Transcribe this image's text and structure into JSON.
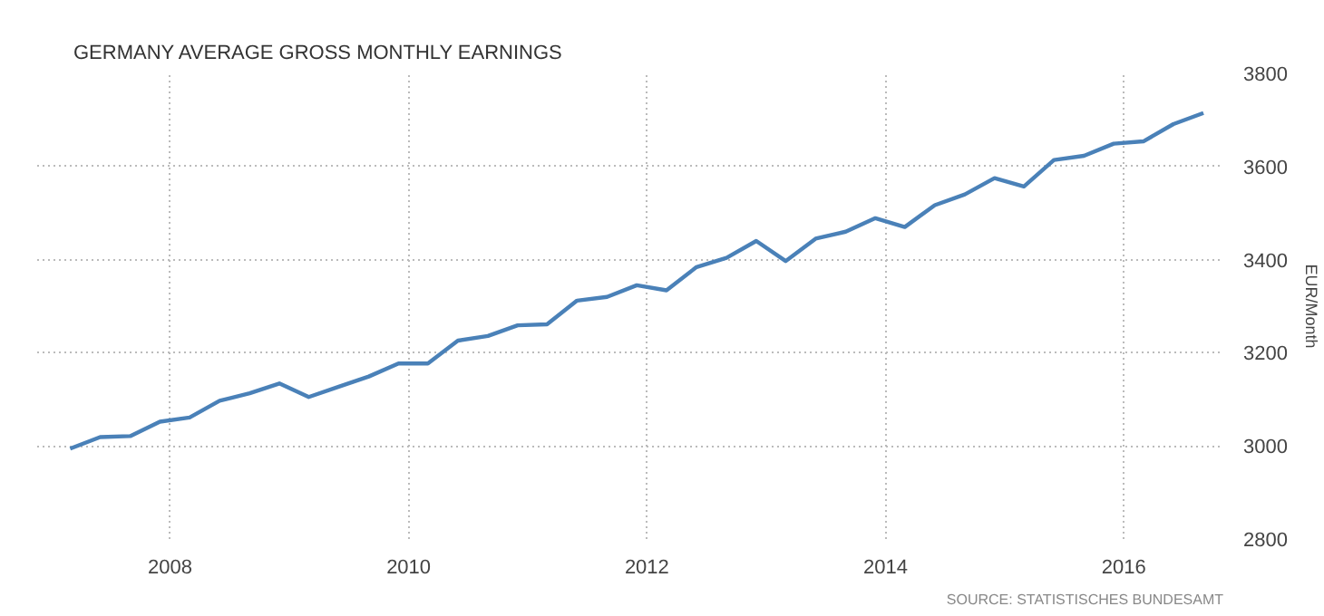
{
  "chart_data": {
    "type": "line",
    "title": "GERMANY AVERAGE GROSS MONTHLY EARNINGS",
    "y2label": "EUR/Month",
    "x": [
      "2007-03",
      "2007-06",
      "2007-09",
      "2007-12",
      "2008-03",
      "2008-06",
      "2008-09",
      "2008-12",
      "2009-03",
      "2009-06",
      "2009-09",
      "2009-12",
      "2010-03",
      "2010-06",
      "2010-09",
      "2010-12",
      "2011-03",
      "2011-06",
      "2011-09",
      "2011-12",
      "2012-03",
      "2012-06",
      "2012-09",
      "2012-12",
      "2013-03",
      "2013-06",
      "2013-09",
      "2013-12",
      "2014-03",
      "2014-06",
      "2014-09",
      "2014-12",
      "2015-03",
      "2015-06",
      "2015-09",
      "2015-12",
      "2016-03",
      "2016-06",
      "2016-09"
    ],
    "series": [
      {
        "color": "#4a81b8",
        "axis": "y2",
        "values": [
          2994,
          3019,
          3021,
          3052,
          3061,
          3097,
          3113,
          3134,
          3105,
          3127,
          3149,
          3177,
          3177,
          3226,
          3236,
          3259,
          3261,
          3312,
          3320,
          3345,
          3334,
          3384,
          3404,
          3440,
          3397,
          3445,
          3460,
          3489,
          3470,
          3517,
          3540,
          3575,
          3557,
          3614,
          3623,
          3649,
          3654,
          3691,
          3715
        ]
      }
    ],
    "xlim": [
      "2006-11-20",
      "2016-11-01"
    ],
    "xticks": [
      "2008",
      "2010",
      "2012",
      "2014",
      "2016"
    ],
    "y2lim": [
      2800,
      3800
    ],
    "y2ticks": [
      2800,
      3000,
      3200,
      3400,
      3600,
      3800
    ],
    "grid": true,
    "line_style": "solid",
    "marker": "none",
    "annotations": [
      "SOURCE: STATISTISCHES BUNDESAMT"
    ]
  }
}
